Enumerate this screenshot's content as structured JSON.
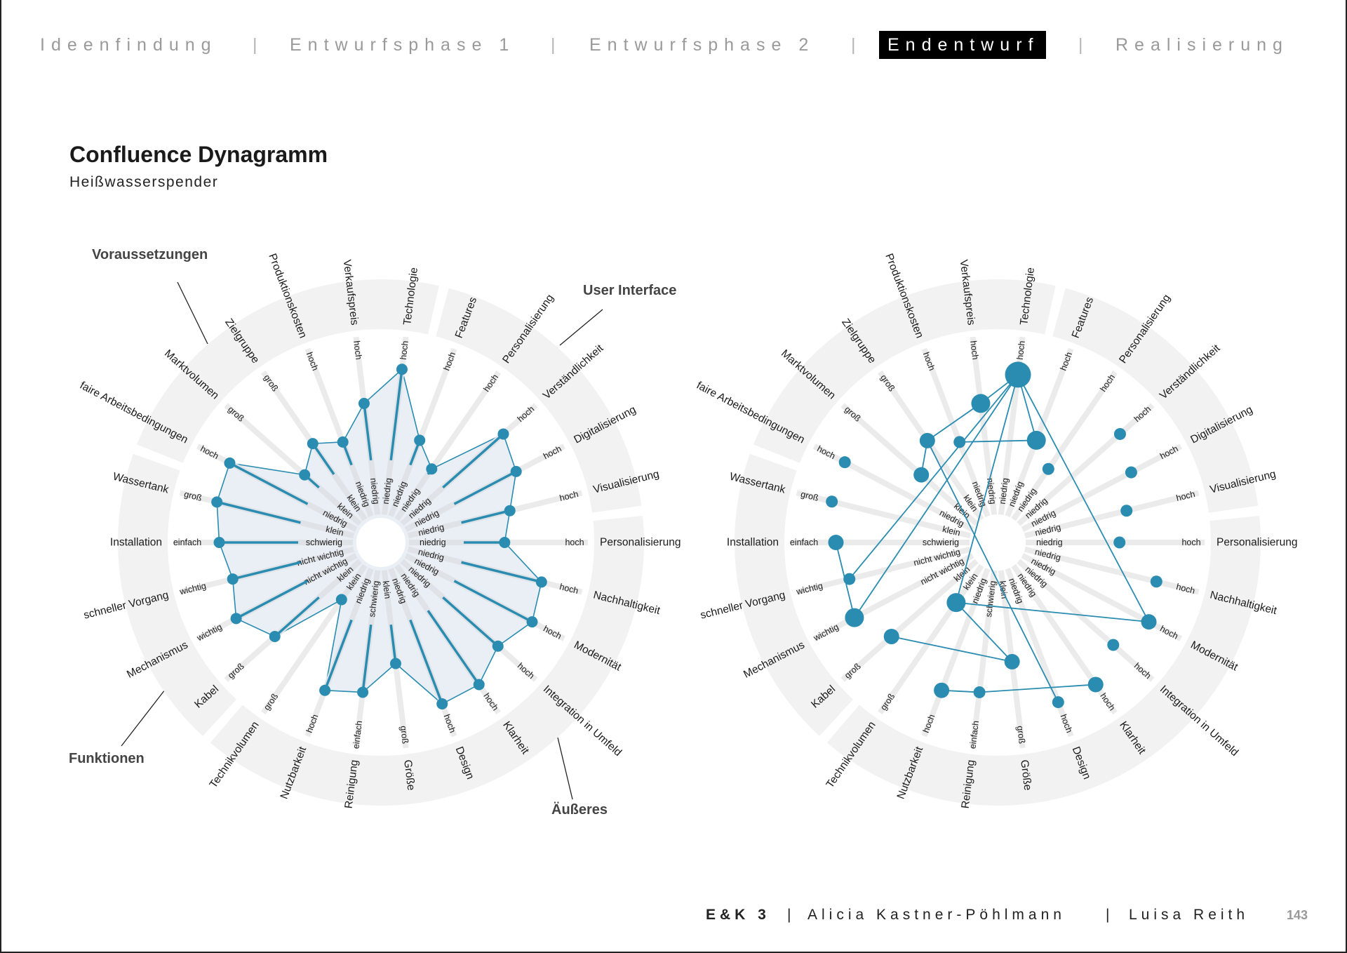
{
  "nav": {
    "items": [
      "Ideenfindung",
      "Entwurfsphase 1",
      "Entwurfsphase 2",
      "Endentwurf",
      "Realisierung"
    ],
    "separator": "|",
    "active": "Endentwurf"
  },
  "title": "Confluence Dynagramm",
  "subtitle": "Heißwasserspender",
  "groups": {
    "voraussetzungen": "Voraussetzungen",
    "user_interface": "User Interface",
    "funktionen": "Funktionen",
    "aeusseres": "Äußeres"
  },
  "spokes": [
    {
      "label": "Technologie",
      "low": "niedrig",
      "high": "hoch"
    },
    {
      "label": "Features",
      "low": "niedrig",
      "high": "hoch"
    },
    {
      "label": "Personalisierung",
      "low": "niedrig",
      "high": "hoch"
    },
    {
      "label": "Verständlichkeit",
      "low": "niedrig",
      "high": "hoch"
    },
    {
      "label": "Digitalisierung",
      "low": "niedrig",
      "high": "hoch"
    },
    {
      "label": "Visualisierung",
      "low": "niedrig",
      "high": "hoch"
    },
    {
      "label": "Personalisierung",
      "low": "niedrig",
      "high": "hoch"
    },
    {
      "label": "Nachhaltigkeit",
      "low": "niedrig",
      "high": "hoch"
    },
    {
      "label": "Modernität",
      "low": "niedrig",
      "high": "hoch"
    },
    {
      "label": "Integration in Umfeld",
      "low": "niedrig",
      "high": "hoch"
    },
    {
      "label": "Klarheit",
      "low": "niedrig",
      "high": "hoch"
    },
    {
      "label": "Design",
      "low": "niedrig",
      "high": "hoch"
    },
    {
      "label": "Größe",
      "low": "klein",
      "high": "groß"
    },
    {
      "label": "Reinigung",
      "low": "schwierig",
      "high": "einfach"
    },
    {
      "label": "Nutzbarkeit",
      "low": "niedrig",
      "high": "hoch"
    },
    {
      "label": "Technikvolumen",
      "low": "klein",
      "high": "groß"
    },
    {
      "label": "Kabel",
      "low": "klein",
      "high": "groß"
    },
    {
      "label": "Mechanismus",
      "low": "nicht wichtig",
      "high": "wichtig"
    },
    {
      "label": "schneller Vorgang",
      "low": "nicht wichtig",
      "high": "wichtig"
    },
    {
      "label": "Installation",
      "low": "schwierig",
      "high": "einfach"
    },
    {
      "label": "Wassertank",
      "low": "klein",
      "high": "groß"
    },
    {
      "label": "faire Arbeitsbedingungen",
      "low": "niedrig",
      "high": "hoch"
    },
    {
      "label": "Marktvolumen",
      "low": "klein",
      "high": "groß"
    },
    {
      "label": "Zielgruppe",
      "low": "klein",
      "high": "groß"
    },
    {
      "label": "Produktionskosten",
      "low": "niedrig",
      "high": "hoch"
    },
    {
      "label": "Verkaufspreis",
      "low": "niedrig",
      "high": "hoch"
    }
  ],
  "ring_segments": [
    {
      "group": "user_interface",
      "from": 1,
      "to": 5
    },
    {
      "group": "aeusseres",
      "from": 6,
      "to": 15
    },
    {
      "group": "funktionen",
      "from": 16,
      "to": 20
    },
    {
      "group": "voraussetzungen",
      "from": 21,
      "to": 26
    }
  ],
  "chart_data": [
    {
      "type": "radar",
      "value_scale": "fraction from low (0) to high (1)",
      "values": [
        0.82,
        0.46,
        0.35,
        0.76,
        0.7,
        0.59,
        0.54,
        0.77,
        0.8,
        0.72,
        0.81,
        0.81,
        0.53,
        0.69,
        0.73,
        0.24,
        0.64,
        0.76,
        0.7,
        0.75,
        0.79,
        0.8,
        0.42,
        0.52,
        0.45,
        0.63
      ]
    },
    {
      "type": "network",
      "value_scale": "fraction from low (0) to high (1)",
      "values": [
        0.79,
        0.46,
        0.35,
        0.76,
        0.69,
        0.59,
        0.53,
        0.76,
        0.8,
        0.71,
        0.81,
        0.8,
        0.52,
        0.69,
        0.73,
        0.26,
        0.64,
        0.75,
        0.7,
        0.75,
        0.8,
        0.81,
        0.42,
        0.54,
        0.45,
        0.63
      ],
      "node_weights": [
        5,
        3,
        1,
        1,
        1,
        1,
        1,
        1,
        2,
        1,
        2,
        1,
        2,
        1,
        2,
        3,
        2,
        3,
        1,
        2,
        1,
        1,
        2,
        2,
        1,
        3
      ],
      "edges": [
        [
          0,
          25
        ],
        [
          25,
          23
        ],
        [
          23,
          22
        ],
        [
          23,
          11
        ],
        [
          0,
          18
        ],
        [
          0,
          17
        ],
        [
          0,
          15
        ],
        [
          0,
          1
        ],
        [
          0,
          8
        ],
        [
          24,
          1
        ],
        [
          19,
          17
        ],
        [
          15,
          8
        ],
        [
          15,
          12
        ],
        [
          16,
          12
        ],
        [
          14,
          13
        ],
        [
          13,
          10
        ]
      ]
    }
  ],
  "colors": {
    "accent": "#2a8cb0",
    "area_fill": "#e9eff5",
    "spoke": "#ebebeb",
    "ring": "#f2f2f2",
    "nav_active_bg": "#000000"
  },
  "footer": {
    "course": "E&K 3",
    "separator": "|",
    "author1": "Alicia Kastner-Pöhlmann",
    "author2": "Luisa Reith",
    "page": "143"
  }
}
